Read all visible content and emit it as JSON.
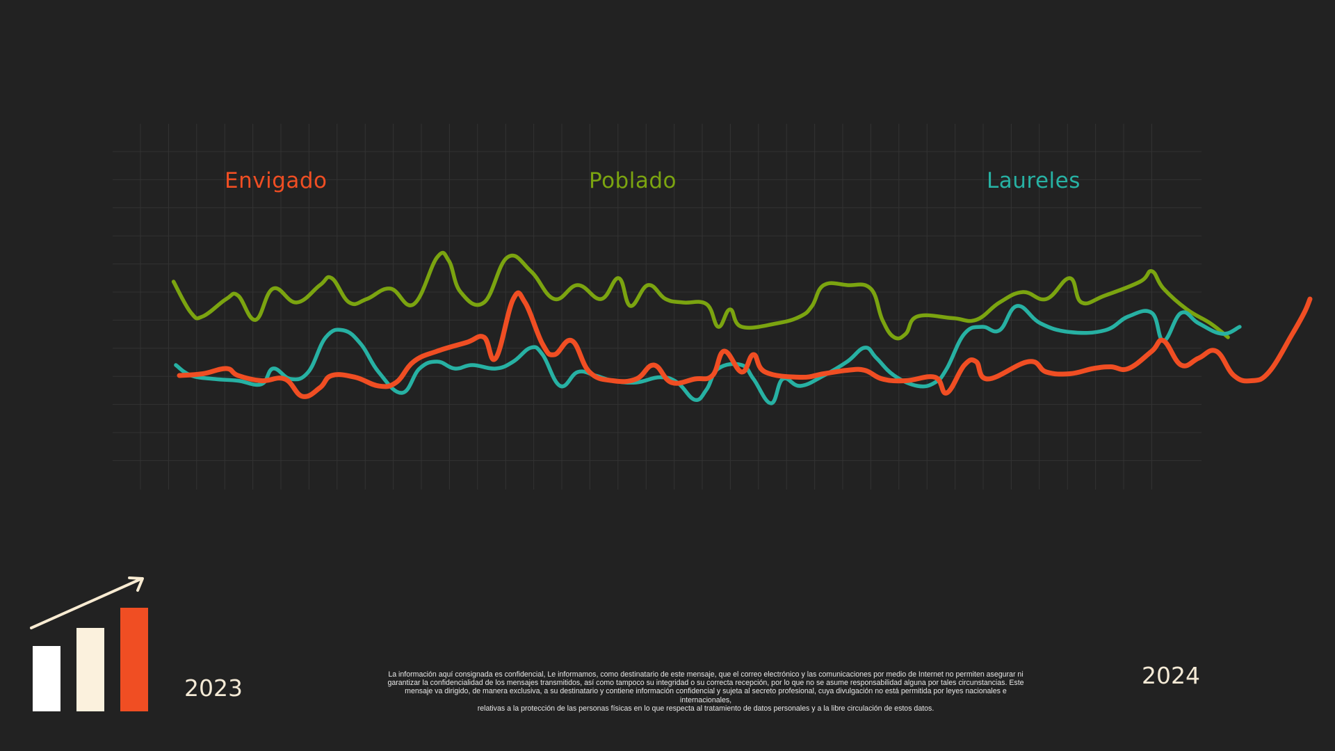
{
  "chart_data": {
    "type": "line",
    "title": "",
    "xlabel": "",
    "ylabel": "",
    "grid": true,
    "legend_placement": "top",
    "x": {
      "start_label": "2023",
      "end_label": "2024"
    },
    "ylim": [
      0,
      100
    ],
    "series": [
      {
        "name": "Envigado",
        "color": "#f04e23",
        "values": [
          [
            0,
            26
          ],
          [
            2,
            26.5
          ],
          [
            4,
            28
          ],
          [
            5,
            26
          ],
          [
            7,
            24.5
          ],
          [
            9,
            25
          ],
          [
            10.5,
            20
          ],
          [
            12,
            22.5
          ],
          [
            13,
            26
          ],
          [
            15,
            25.5
          ],
          [
            17,
            23
          ],
          [
            18.5,
            24
          ],
          [
            20,
            30
          ],
          [
            22,
            33
          ],
          [
            24.5,
            35.5
          ],
          [
            26,
            37
          ],
          [
            27,
            31
          ],
          [
            28.5,
            48
          ],
          [
            29.5,
            47
          ],
          [
            31,
            35
          ],
          [
            32,
            32
          ],
          [
            33.5,
            36
          ],
          [
            35,
            27
          ],
          [
            37,
            24.5
          ],
          [
            39,
            25
          ],
          [
            40.5,
            29
          ],
          [
            42,
            24
          ],
          [
            44,
            25
          ],
          [
            45.5,
            26
          ],
          [
            46.5,
            33
          ],
          [
            48,
            27
          ],
          [
            49,
            32
          ],
          [
            50,
            27
          ],
          [
            53,
            25.5
          ],
          [
            55,
            26.5
          ],
          [
            57,
            27.5
          ],
          [
            58.5,
            27.5
          ],
          [
            60,
            25
          ],
          [
            62,
            24.5
          ],
          [
            64.5,
            25.5
          ],
          [
            65.5,
            21
          ],
          [
            67,
            29
          ],
          [
            68,
            30
          ],
          [
            69,
            25
          ],
          [
            72.5,
            30
          ],
          [
            74,
            27
          ],
          [
            76,
            26.5
          ],
          [
            78,
            28
          ],
          [
            79.5,
            28.5
          ],
          [
            81,
            28
          ],
          [
            83,
            33
          ],
          [
            84,
            36
          ],
          [
            85.5,
            29
          ],
          [
            87,
            31
          ],
          [
            88.5,
            33
          ],
          [
            90,
            26
          ],
          [
            91.5,
            24.5
          ],
          [
            93,
            27
          ],
          [
            95,
            38
          ],
          [
            96,
            44
          ],
          [
            96.5,
            48
          ]
        ]
      },
      {
        "name": "Poblado",
        "color": "#7ba410",
        "values": [
          [
            -0.5,
            53
          ],
          [
            1,
            44
          ],
          [
            2,
            43
          ],
          [
            4,
            48
          ],
          [
            5,
            49
          ],
          [
            6.5,
            42
          ],
          [
            8,
            51
          ],
          [
            10,
            47
          ],
          [
            12,
            52
          ],
          [
            13,
            54
          ],
          [
            14.5,
            47
          ],
          [
            16,
            48
          ],
          [
            18,
            51
          ],
          [
            20,
            46.5
          ],
          [
            22,
            60
          ],
          [
            23,
            59
          ],
          [
            24,
            50
          ],
          [
            26,
            47
          ],
          [
            28,
            60
          ],
          [
            30,
            56
          ],
          [
            32,
            48
          ],
          [
            34,
            52
          ],
          [
            36,
            48
          ],
          [
            37.5,
            54
          ],
          [
            38.5,
            46
          ],
          [
            40,
            52
          ],
          [
            41.5,
            48
          ],
          [
            43,
            47
          ],
          [
            45,
            46.5
          ],
          [
            46,
            40
          ],
          [
            47,
            45
          ],
          [
            48,
            40
          ],
          [
            51,
            41
          ],
          [
            53,
            43
          ],
          [
            54,
            46
          ],
          [
            55,
            52
          ],
          [
            57,
            52
          ],
          [
            59,
            51
          ],
          [
            60,
            42
          ],
          [
            61,
            37
          ],
          [
            62,
            38
          ],
          [
            63,
            43
          ],
          [
            66,
            42.5
          ],
          [
            68,
            42
          ],
          [
            70,
            47
          ],
          [
            72,
            50
          ],
          [
            74,
            48
          ],
          [
            76,
            54
          ],
          [
            77,
            47
          ],
          [
            79,
            49
          ],
          [
            82,
            53
          ],
          [
            83,
            56
          ],
          [
            84,
            51
          ],
          [
            86,
            45
          ],
          [
            88,
            41
          ],
          [
            89.5,
            37
          ]
        ]
      },
      {
        "name": "Laureles",
        "color": "#27b1a3",
        "values": [
          [
            -0.3,
            29
          ],
          [
            1,
            26
          ],
          [
            3,
            25
          ],
          [
            5,
            24.5
          ],
          [
            7,
            23.5
          ],
          [
            8,
            28
          ],
          [
            9.5,
            25
          ],
          [
            11,
            27
          ],
          [
            12.5,
            37
          ],
          [
            14,
            39
          ],
          [
            15.5,
            35
          ],
          [
            17,
            27
          ],
          [
            19,
            21
          ],
          [
            20.5,
            28
          ],
          [
            22,
            30
          ],
          [
            23.5,
            28
          ],
          [
            25,
            29
          ],
          [
            27,
            28
          ],
          [
            28.5,
            30
          ],
          [
            30,
            34
          ],
          [
            31,
            32
          ],
          [
            32.5,
            23
          ],
          [
            34,
            27
          ],
          [
            35.5,
            26
          ],
          [
            37,
            24.5
          ],
          [
            39,
            24
          ],
          [
            41,
            25.5
          ],
          [
            42.5,
            24
          ],
          [
            44,
            19
          ],
          [
            45,
            22
          ],
          [
            46,
            28
          ],
          [
            48,
            29
          ],
          [
            49,
            25
          ],
          [
            50.5,
            18
          ],
          [
            51.5,
            25
          ],
          [
            53,
            23
          ],
          [
            55,
            26
          ],
          [
            57,
            30
          ],
          [
            58.5,
            34
          ],
          [
            59.5,
            31
          ],
          [
            61,
            26
          ],
          [
            63,
            23
          ],
          [
            64.5,
            24
          ],
          [
            65.5,
            28
          ],
          [
            67,
            38
          ],
          [
            68.5,
            40
          ],
          [
            70,
            39
          ],
          [
            71.5,
            46
          ],
          [
            73.5,
            41
          ],
          [
            76,
            38.5
          ],
          [
            79,
            39
          ],
          [
            81,
            43
          ],
          [
            83,
            44
          ],
          [
            84,
            36
          ],
          [
            85.5,
            44
          ],
          [
            87,
            41
          ],
          [
            89,
            38
          ],
          [
            90.5,
            40
          ]
        ]
      }
    ]
  },
  "footer": {
    "year_start": "2023",
    "year_end": "2024",
    "disclaimer_lines": [
      "La información aquí consignada es confidencial, Le informamos, como destinatario de este mensaje, que el correo electrónico y las comunicaciones por medio de Internet no permiten asegurar ni",
      "garantizar la confidencialidad de los mensajes transmitidos, así como tampoco su integridad o su correcta recepción, por lo que no se asume responsabilidad alguna por tales circunstancias. Este",
      "mensaje va dirigido, de manera exclusiva, a su destinatario y contiene información confidencial y sujeta al secreto profesional, cuya divulgación no está permitida por leyes nacionales e internacionales,",
      "relativas a la protección de las personas físicas en lo que respecta al tratamiento de datos personales y a la libre circulación de estos datos."
    ]
  },
  "logo": {
    "icon": "growth-bar-chart-icon",
    "bar_colors": [
      "#ffffff",
      "#fbf1dd",
      "#f04e23"
    ],
    "arrow_color": "#f8ebd2"
  },
  "colors": {
    "background": "#222222",
    "grid": "#333333"
  }
}
